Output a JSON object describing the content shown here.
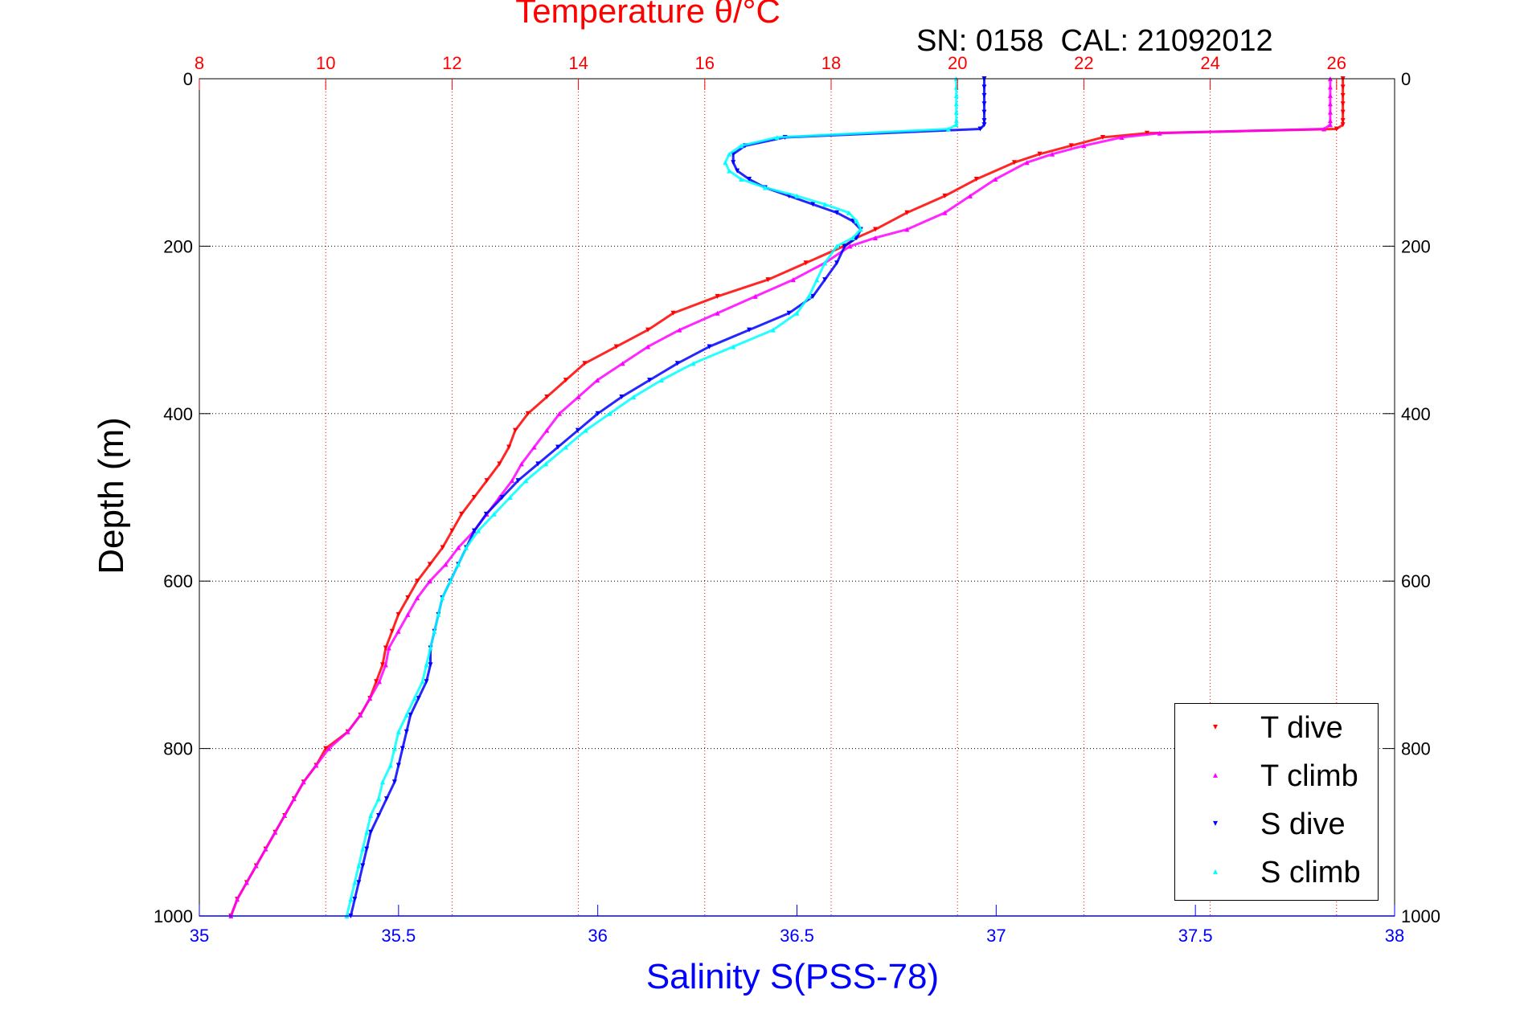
{
  "chart_data": {
    "type": "scatter",
    "title": "Temperature θ/°C",
    "subtitle": "SN: 0158  CAL: 21092012",
    "xlabel": "Salinity S(PSS-78)",
    "ylabel": "Depth (m)",
    "x_bottom": {
      "label": "Salinity S(PSS-78)",
      "range": [
        35,
        38
      ],
      "ticks": [
        "35",
        "35.5",
        "36",
        "36.5",
        "37",
        "37.5",
        "38"
      ],
      "color": "#0000ff"
    },
    "x_top": {
      "label": "Temperature θ/°C",
      "range": [
        8,
        27
      ],
      "ticks": [
        "8",
        "10",
        "12",
        "14",
        "16",
        "18",
        "20",
        "22",
        "24",
        "26"
      ],
      "color": "#ff0000"
    },
    "y": {
      "label": "Depth (m)",
      "range": [
        0,
        1000
      ],
      "reversed": true,
      "ticks": [
        "0",
        "200",
        "400",
        "600",
        "800",
        "1000"
      ]
    },
    "grid": true,
    "legend_position": "bottom-right",
    "series": [
      {
        "name": "T dive",
        "axis": "temperature",
        "color": "#ff0000",
        "marker": "triangle-down",
        "depth": [
          0,
          10,
          20,
          30,
          40,
          50,
          55,
          60,
          65,
          70,
          80,
          90,
          100,
          120,
          140,
          160,
          180,
          190,
          200,
          220,
          240,
          260,
          280,
          300,
          320,
          340,
          360,
          380,
          400,
          420,
          440,
          460,
          480,
          500,
          520,
          540,
          560,
          580,
          600,
          620,
          640,
          660,
          680,
          700,
          720,
          740,
          760,
          780,
          800,
          820,
          840,
          860,
          880,
          900,
          920,
          940,
          960,
          980,
          1000
        ],
        "values": [
          26.1,
          26.1,
          26.1,
          26.1,
          26.1,
          26.1,
          26.1,
          26.0,
          23.0,
          22.3,
          21.8,
          21.3,
          20.9,
          20.3,
          19.8,
          19.2,
          18.7,
          18.4,
          18.2,
          17.6,
          17.0,
          16.2,
          15.5,
          15.1,
          14.6,
          14.1,
          13.8,
          13.5,
          13.2,
          13.0,
          12.9,
          12.75,
          12.55,
          12.35,
          12.15,
          12.0,
          11.85,
          11.65,
          11.45,
          11.3,
          11.15,
          11.05,
          10.95,
          10.9,
          10.8,
          10.7,
          10.55,
          10.35,
          10.0,
          9.85,
          9.65,
          9.5,
          9.35,
          9.2,
          9.05,
          8.9,
          8.75,
          8.6,
          8.5
        ]
      },
      {
        "name": "T climb",
        "axis": "temperature",
        "color": "#ff00ff",
        "marker": "triangle-up",
        "depth": [
          0,
          10,
          20,
          30,
          40,
          50,
          55,
          60,
          65,
          70,
          80,
          90,
          100,
          120,
          140,
          160,
          180,
          190,
          200,
          220,
          240,
          260,
          280,
          300,
          320,
          340,
          360,
          380,
          400,
          420,
          440,
          460,
          480,
          500,
          520,
          540,
          560,
          580,
          600,
          620,
          640,
          660,
          680,
          700,
          720,
          740,
          760,
          780,
          800,
          820,
          840,
          860,
          880,
          900,
          920,
          940,
          960,
          980,
          1000
        ],
        "values": [
          25.9,
          25.9,
          25.9,
          25.9,
          25.9,
          25.9,
          25.9,
          25.8,
          23.2,
          22.6,
          22.0,
          21.5,
          21.1,
          20.6,
          20.2,
          19.8,
          19.2,
          18.7,
          18.3,
          17.9,
          17.4,
          16.8,
          16.2,
          15.6,
          15.1,
          14.7,
          14.3,
          14.0,
          13.7,
          13.5,
          13.3,
          13.1,
          12.95,
          12.75,
          12.55,
          12.35,
          12.1,
          11.9,
          11.65,
          11.45,
          11.3,
          11.15,
          11.0,
          10.95,
          10.85,
          10.7,
          10.55,
          10.35,
          10.05,
          9.85,
          9.65,
          9.5,
          9.35,
          9.2,
          9.05,
          8.9,
          8.75,
          8.6,
          8.5
        ]
      },
      {
        "name": "S dive",
        "axis": "salinity",
        "color": "#0000ff",
        "marker": "triangle-down",
        "depth": [
          0,
          10,
          20,
          30,
          40,
          50,
          55,
          60,
          70,
          80,
          90,
          100,
          110,
          120,
          130,
          140,
          150,
          160,
          170,
          180,
          190,
          200,
          220,
          240,
          260,
          280,
          300,
          320,
          340,
          360,
          380,
          400,
          420,
          440,
          460,
          480,
          500,
          520,
          540,
          560,
          580,
          600,
          620,
          640,
          660,
          680,
          700,
          720,
          740,
          760,
          780,
          800,
          820,
          840,
          860,
          880,
          900,
          920,
          940,
          960,
          980,
          1000
        ],
        "values": [
          36.97,
          36.97,
          36.97,
          36.97,
          36.97,
          36.97,
          36.97,
          36.96,
          36.47,
          36.37,
          36.34,
          36.34,
          36.35,
          36.38,
          36.42,
          36.48,
          36.54,
          36.6,
          36.64,
          36.66,
          36.65,
          36.62,
          36.6,
          36.57,
          36.54,
          36.48,
          36.38,
          36.28,
          36.2,
          36.13,
          36.06,
          36.0,
          35.95,
          35.9,
          35.85,
          35.8,
          35.76,
          35.72,
          35.69,
          35.67,
          35.65,
          35.63,
          35.61,
          35.6,
          35.59,
          35.58,
          35.58,
          35.57,
          35.55,
          35.53,
          35.52,
          35.51,
          35.5,
          35.49,
          35.47,
          35.45,
          35.43,
          35.42,
          35.41,
          35.4,
          35.39,
          35.38
        ]
      },
      {
        "name": "S climb",
        "axis": "salinity",
        "color": "#00ffff",
        "marker": "triangle-up",
        "depth": [
          0,
          10,
          20,
          30,
          40,
          50,
          55,
          60,
          70,
          80,
          90,
          100,
          110,
          120,
          130,
          140,
          150,
          160,
          170,
          180,
          190,
          200,
          220,
          240,
          260,
          280,
          300,
          320,
          340,
          360,
          380,
          400,
          420,
          440,
          460,
          480,
          500,
          520,
          540,
          560,
          580,
          600,
          620,
          640,
          660,
          680,
          700,
          720,
          740,
          760,
          780,
          800,
          820,
          840,
          860,
          880,
          900,
          920,
          940,
          960,
          980,
          1000
        ],
        "values": [
          36.9,
          36.9,
          36.9,
          36.9,
          36.9,
          36.9,
          36.9,
          36.88,
          36.45,
          36.36,
          36.33,
          36.32,
          36.33,
          36.36,
          36.42,
          36.5,
          36.57,
          36.63,
          36.65,
          36.66,
          36.64,
          36.6,
          36.57,
          36.55,
          36.53,
          36.5,
          36.44,
          36.34,
          36.24,
          36.16,
          36.09,
          36.03,
          35.97,
          35.92,
          35.87,
          35.82,
          35.78,
          35.74,
          35.7,
          35.67,
          35.65,
          35.63,
          35.61,
          35.6,
          35.59,
          35.58,
          35.57,
          35.56,
          35.54,
          35.52,
          35.5,
          35.49,
          35.48,
          35.46,
          35.45,
          35.43,
          35.42,
          35.41,
          35.4,
          35.39,
          35.38,
          35.37
        ]
      }
    ]
  },
  "colors": {
    "temperature_axis": "#ff0000",
    "salinity_axis": "#0000ff",
    "grid": "#000000"
  }
}
